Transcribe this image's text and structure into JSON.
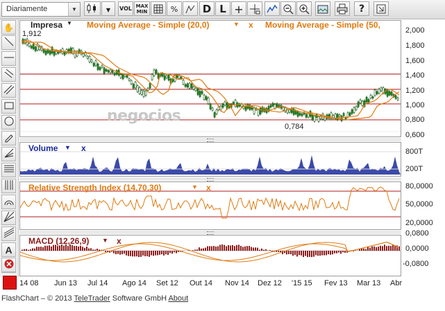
{
  "toolbar": {
    "period_value": "Diariamente",
    "buttons": [
      "VOL",
      "MAX MIN",
      "D",
      "L",
      "?"
    ]
  },
  "main_chart": {
    "instrument": "Impresa",
    "ma1_label": "Moving Average - Simple (20,0)",
    "ma2_label": "Moving Average - Simple (50,",
    "watermark": "negocios",
    "start_label": "1,912",
    "low_label": "0,784",
    "y_ticks": [
      "2,000",
      "1,800",
      "1,600",
      "1,400",
      "1,200",
      "1,000",
      "0,800",
      "0,600"
    ]
  },
  "volume": {
    "label": "Volume",
    "y_ticks": [
      "800T",
      "200T"
    ]
  },
  "rsi": {
    "label": "Relative Strength Index (14,70,30)",
    "y_ticks": [
      "80,0000",
      "50,0000",
      "20,0000"
    ]
  },
  "macd": {
    "label": "MACD (12,26,9)",
    "y_ticks": [
      "0,0800",
      "0,0000",
      "-0,0800"
    ]
  },
  "x_labels": [
    "14 08",
    "Jun 13",
    "Jul 14",
    "Ago 14",
    "Set 12",
    "Out 14",
    "Nov 14",
    "Dez 12",
    "'15 15",
    "Fev 13",
    "Mar 13",
    "Abr"
  ],
  "footer": {
    "prefix": "FlashChart – © 2013",
    "brand_a": "TeleTrader",
    "brand_b": "Software GmbH",
    "about": "About"
  },
  "colors": {
    "price": "#1e8a1e",
    "ma": "#e07a10",
    "volume": "#1a2a9a",
    "rsi": "#e07a10",
    "macd_hist": "#8b1a1a",
    "hline": "#b01818",
    "label_blue": "#1a2a9a",
    "label_orange": "#e07a10"
  }
}
